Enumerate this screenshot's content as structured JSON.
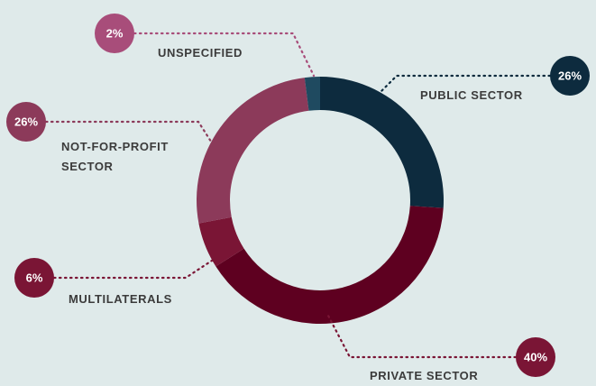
{
  "chart_data": {
    "type": "donut",
    "categories": [
      "PUBLIC SECTOR",
      "PRIVATE SECTOR",
      "MULTILATERALS",
      "NOT-FOR-PROFIT SECTOR",
      "UNSPECIFIED"
    ],
    "values": [
      26,
      40,
      6,
      26,
      2
    ],
    "value_labels": [
      "26%",
      "40%",
      "6%",
      "26%",
      "2%"
    ],
    "colors": [
      "#0d2b3e",
      "#5e0020",
      "#7a1535",
      "#8c3a5a",
      "#1f4a60"
    ],
    "label_colors": [
      "#0d2b3e",
      "#7a1535",
      "#7a1535",
      "#8c3a5a",
      "#a84d7a"
    ]
  }
}
